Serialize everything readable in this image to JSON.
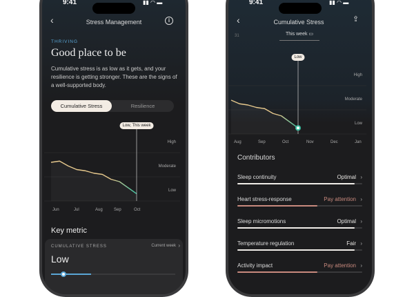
{
  "status_time": "9:41",
  "left": {
    "nav_title": "Stress Management",
    "eyebrow": "THRIVING",
    "headline": "Good place to be",
    "body": "Cumulative stress is as low as it gets, and your resilience is getting stronger. These are the signs of a well-supported body.",
    "tabs": [
      {
        "label": "Cumulative Stress",
        "active": true
      },
      {
        "label": "Resilience",
        "active": false
      }
    ],
    "tooltip": "Low, This week",
    "levels": [
      "High",
      "Moderate",
      "Low"
    ],
    "months": [
      "Jun",
      "Jul",
      "Aug",
      "Sep",
      "Oct"
    ],
    "series": [
      1.6,
      1.65,
      1.45,
      1.3,
      1.25,
      1.15,
      1.1,
      0.9,
      0.8,
      0.55,
      0.3
    ],
    "key_metric_title": "Key metric",
    "card": {
      "label": "CUMULATIVE STRESS",
      "period": "Current week",
      "value": "Low",
      "level": 0.1
    }
  },
  "right": {
    "nav_title": "Cumulative Stress",
    "prev_date": "31",
    "period": "This week",
    "tooltip": "Low",
    "levels": [
      "High",
      "Moderate",
      "Low"
    ],
    "months": [
      "Aug",
      "Sep",
      "Oct",
      "Nov",
      "Dec",
      "Jan"
    ],
    "series": [
      1.4,
      1.25,
      1.2,
      1.1,
      1.05,
      0.85,
      0.75,
      0.5,
      0.25
    ],
    "contributors_title": "Contributors",
    "contributors": [
      {
        "label": "Sleep continuity",
        "status": "Optimal",
        "level": 0.94,
        "status_color": "#e8e6e3",
        "bar_color": "#f0ede8"
      },
      {
        "label": "Heart stress-response",
        "status": "Pay attention",
        "level": 0.64,
        "status_color": "#c98a7e",
        "bar_color": "#c98a7e"
      },
      {
        "label": "Sleep micromotions",
        "status": "Optimal",
        "level": 0.94,
        "status_color": "#e8e6e3",
        "bar_color": "#f0ede8"
      },
      {
        "label": "Temperature regulation",
        "status": "Fair",
        "level": 0.94,
        "status_color": "#e8e6e3",
        "bar_color": "#f0ede8"
      },
      {
        "label": "Activity impact",
        "status": "Pay attention",
        "level": 0.64,
        "status_color": "#c98a7e",
        "bar_color": "#c98a7e"
      }
    ]
  },
  "colors": {
    "accent_blue": "#5aa6d6",
    "line_start": "#e7c98d",
    "line_end": "#3fc1a3",
    "attention": "#c98a7e"
  }
}
